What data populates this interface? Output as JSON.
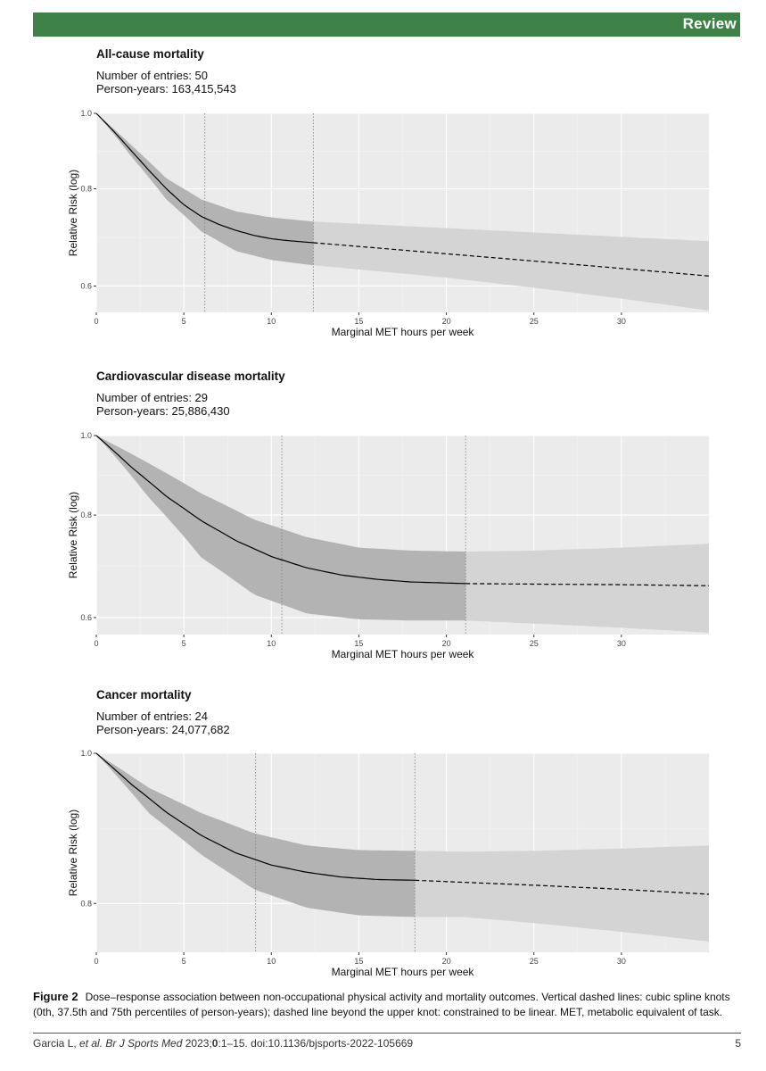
{
  "header": {
    "section_label": "Review"
  },
  "chart_data": [
    {
      "type": "line",
      "title": "All-cause mortality",
      "entries_text": "Number of entries: 50",
      "person_years_text": "Person-years: 163,415,543",
      "xlabel": "Marginal MET hours per week",
      "ylabel": "Relative Risk (log)",
      "xlim": [
        0,
        35
      ],
      "ylim": [
        0.555,
        1.0
      ],
      "xticks": [
        0,
        5,
        10,
        15,
        20,
        25,
        30
      ],
      "yticks": [
        0.6,
        0.8,
        1.0
      ],
      "ytick_labels": [
        "0.6",
        "0.8",
        "1.0"
      ],
      "knots": [
        0,
        6.2,
        12.4
      ],
      "series": [
        {
          "name": "estimate",
          "style": "solid",
          "x": [
            0,
            1,
            2,
            3,
            4,
            5,
            6,
            7,
            8,
            9,
            10,
            11,
            12.4
          ],
          "y": [
            1.0,
            0.948,
            0.895,
            0.845,
            0.8,
            0.763,
            0.737,
            0.72,
            0.707,
            0.697,
            0.69,
            0.686,
            0.682
          ]
        },
        {
          "name": "linear extrapolation",
          "style": "dashed",
          "x": [
            12.4,
            20,
            25,
            30,
            35
          ],
          "y": [
            0.682,
            0.66,
            0.646,
            0.632,
            0.618
          ]
        },
        {
          "name": "CI upper",
          "style": "band",
          "x": [
            0,
            2,
            4,
            6,
            8,
            10,
            12.4,
            20,
            25,
            30,
            35
          ],
          "y": [
            1.0,
            0.91,
            0.825,
            0.775,
            0.748,
            0.735,
            0.726,
            0.712,
            0.703,
            0.694,
            0.685
          ]
        },
        {
          "name": "CI lower",
          "style": "band",
          "x": [
            0,
            2,
            4,
            6,
            8,
            10,
            12.4,
            20,
            25,
            30,
            35
          ],
          "y": [
            1.0,
            0.88,
            0.775,
            0.705,
            0.665,
            0.648,
            0.638,
            0.615,
            0.597,
            0.578,
            0.558
          ]
        }
      ]
    },
    {
      "type": "line",
      "title": "Cardiovascular disease mortality",
      "entries_text": "Number of entries: 29",
      "person_years_text": "Person-years: 25,886,430",
      "xlabel": "Marginal MET hours per week",
      "ylabel": "Relative Risk (log)",
      "xlim": [
        0,
        35
      ],
      "ylim": [
        0.572,
        1.0
      ],
      "xticks": [
        0,
        5,
        10,
        15,
        20,
        25,
        30
      ],
      "yticks": [
        0.6,
        0.8,
        1.0
      ],
      "ytick_labels": [
        "0.6",
        "0.8",
        "1.0"
      ],
      "knots": [
        0,
        10.6,
        21.1
      ],
      "series": [
        {
          "name": "estimate",
          "style": "solid",
          "x": [
            0,
            2,
            4,
            6,
            8,
            10,
            12,
            14,
            16,
            18,
            21.1
          ],
          "y": [
            1.0,
            0.915,
            0.843,
            0.787,
            0.744,
            0.712,
            0.69,
            0.676,
            0.668,
            0.663,
            0.66
          ]
        },
        {
          "name": "linear extrapolation",
          "style": "dashed",
          "x": [
            21.1,
            25,
            30,
            35
          ],
          "y": [
            0.66,
            0.659,
            0.658,
            0.656
          ]
        },
        {
          "name": "CI upper",
          "style": "band",
          "x": [
            0,
            3,
            6,
            9,
            12,
            15,
            18,
            21.1,
            25,
            30,
            35
          ],
          "y": [
            1.0,
            0.925,
            0.85,
            0.79,
            0.752,
            0.73,
            0.724,
            0.722,
            0.724,
            0.73,
            0.738
          ]
        },
        {
          "name": "CI lower",
          "style": "band",
          "x": [
            0,
            3,
            6,
            9,
            12,
            15,
            18,
            21.1,
            25,
            30,
            35
          ],
          "y": [
            1.0,
            0.84,
            0.71,
            0.64,
            0.607,
            0.597,
            0.595,
            0.595,
            0.59,
            0.583,
            0.575
          ]
        }
      ]
    },
    {
      "type": "line",
      "title": "Cancer mortality",
      "entries_text": "Number of entries: 24",
      "person_years_text": "Person-years: 24,077,682",
      "xlabel": "Marginal MET hours per week",
      "ylabel": "Relative Risk (log)",
      "xlim": [
        0,
        35
      ],
      "ylim": [
        0.744,
        1.0
      ],
      "xticks": [
        0,
        5,
        10,
        15,
        20,
        25,
        30
      ],
      "yticks": [
        0.8,
        1.0
      ],
      "ytick_labels": [
        "0.8",
        "1.0"
      ],
      "knots": [
        0,
        9.1,
        18.2
      ],
      "series": [
        {
          "name": "estimate",
          "style": "solid",
          "x": [
            0,
            2,
            4,
            6,
            8,
            10,
            12,
            14,
            16,
            18.2
          ],
          "y": [
            1.0,
            0.955,
            0.916,
            0.885,
            0.862,
            0.847,
            0.838,
            0.832,
            0.829,
            0.828
          ]
        },
        {
          "name": "linear extrapolation",
          "style": "dashed",
          "x": [
            18.2,
            25,
            30,
            35
          ],
          "y": [
            0.828,
            0.822,
            0.817,
            0.811
          ]
        },
        {
          "name": "CI upper",
          "style": "band",
          "x": [
            0,
            3,
            6,
            9,
            12,
            15,
            18.2,
            21,
            25,
            30,
            35
          ],
          "y": [
            1.0,
            0.95,
            0.915,
            0.888,
            0.872,
            0.866,
            0.865,
            0.864,
            0.865,
            0.868,
            0.872
          ]
        },
        {
          "name": "CI lower",
          "style": "band",
          "x": [
            0,
            3,
            6,
            9,
            12,
            15,
            18.2,
            21,
            25,
            30,
            35
          ],
          "y": [
            1.0,
            0.915,
            0.86,
            0.817,
            0.795,
            0.786,
            0.784,
            0.784,
            0.777,
            0.767,
            0.756
          ]
        }
      ]
    }
  ],
  "caption": {
    "label": "Figure 2",
    "text": "Dose–response association between non-occupational physical activity and mortality outcomes. Vertical dashed lines: cubic spline knots (0th, 37.5th and 75th percentiles of person-years); dashed line beyond the upper knot: constrained to be linear. MET, metabolic equivalent of task."
  },
  "footer": {
    "citation_prefix": "Garcia L, ",
    "citation_italic": "et al. Br J Sports Med",
    "citation_year": " 2023;",
    "citation_volume": "0",
    "citation_rest": ":1–15. doi:10.1136/bjsports-2022-105669",
    "page_number": "5"
  }
}
